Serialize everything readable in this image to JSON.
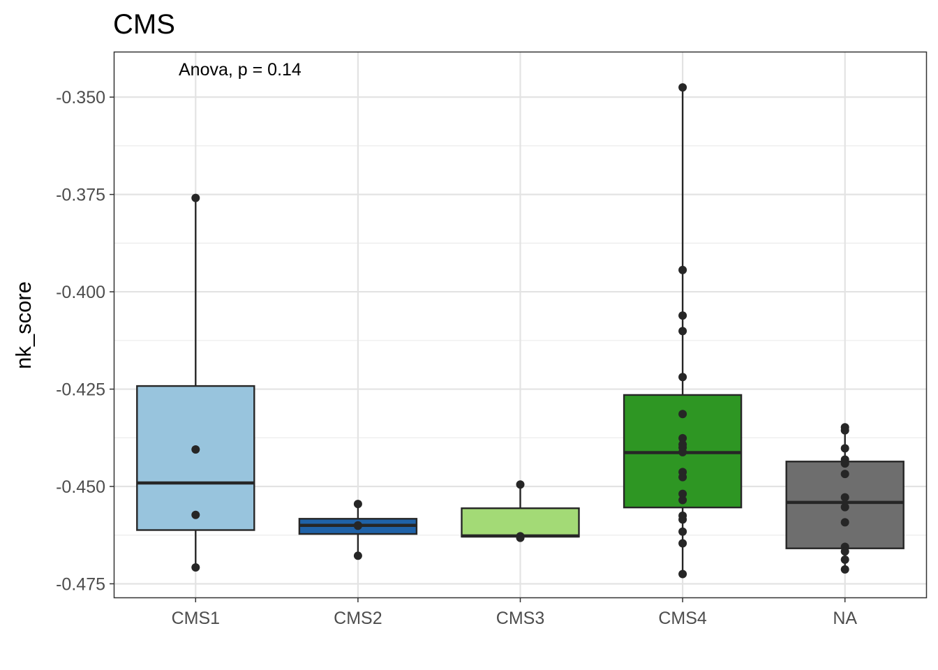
{
  "chart_data": {
    "type": "boxplot",
    "title": "CMS",
    "xlabel": "",
    "ylabel": "nk_score",
    "annotation": "Anova, p = 0.14",
    "ylim": [
      -0.4785,
      -0.3385
    ],
    "y_ticks": [
      -0.35,
      -0.375,
      -0.4,
      -0.425,
      -0.45,
      -0.475
    ],
    "y_tick_labels": [
      "-0.350",
      "-0.375",
      "-0.400",
      "-0.425",
      "-0.450",
      "-0.475"
    ],
    "grid": true,
    "legend": "none",
    "categories": [
      "CMS1",
      "CMS2",
      "CMS3",
      "CMS4",
      "NA"
    ],
    "boxes": [
      {
        "category": "CMS1",
        "color": "#98c4dd",
        "min": -0.4708,
        "q1": -0.4612,
        "median": -0.4491,
        "q3": -0.4242,
        "max": -0.3759,
        "points": [
          -0.3759,
          -0.4405,
          -0.4573,
          -0.4708
        ]
      },
      {
        "category": "CMS2",
        "color": "#1f62a8",
        "min": -0.4678,
        "q1": -0.4622,
        "median": -0.46,
        "q3": -0.4583,
        "max": -0.4545,
        "points": [
          -0.4545,
          -0.46,
          -0.4601,
          -0.4678
        ]
      },
      {
        "category": "CMS3",
        "color": "#a3da76",
        "min": -0.4632,
        "q1": -0.4629,
        "median": -0.4627,
        "q3": -0.4556,
        "max": -0.4495,
        "points": [
          -0.4495,
          -0.4628,
          -0.4632
        ]
      },
      {
        "category": "CMS4",
        "color": "#2e9623",
        "min": -0.4725,
        "q1": -0.4554,
        "median": -0.4413,
        "q3": -0.4265,
        "max": -0.3475,
        "points": [
          -0.3475,
          -0.3944,
          -0.4061,
          -0.4101,
          -0.4219,
          -0.4314,
          -0.4376,
          -0.4392,
          -0.44,
          -0.4412,
          -0.4463,
          -0.4476,
          -0.4519,
          -0.4535,
          -0.4575,
          -0.4585,
          -0.4616,
          -0.4646,
          -0.4725
        ]
      },
      {
        "category": "NA",
        "color": "#6e6e6e",
        "min": -0.4713,
        "q1": -0.4659,
        "median": -0.4541,
        "q3": -0.4436,
        "max": -0.4348,
        "points": [
          -0.4348,
          -0.4356,
          -0.4402,
          -0.4431,
          -0.4441,
          -0.4468,
          -0.4528,
          -0.4553,
          -0.4592,
          -0.4655,
          -0.4667,
          -0.4688,
          -0.4713
        ]
      }
    ]
  }
}
